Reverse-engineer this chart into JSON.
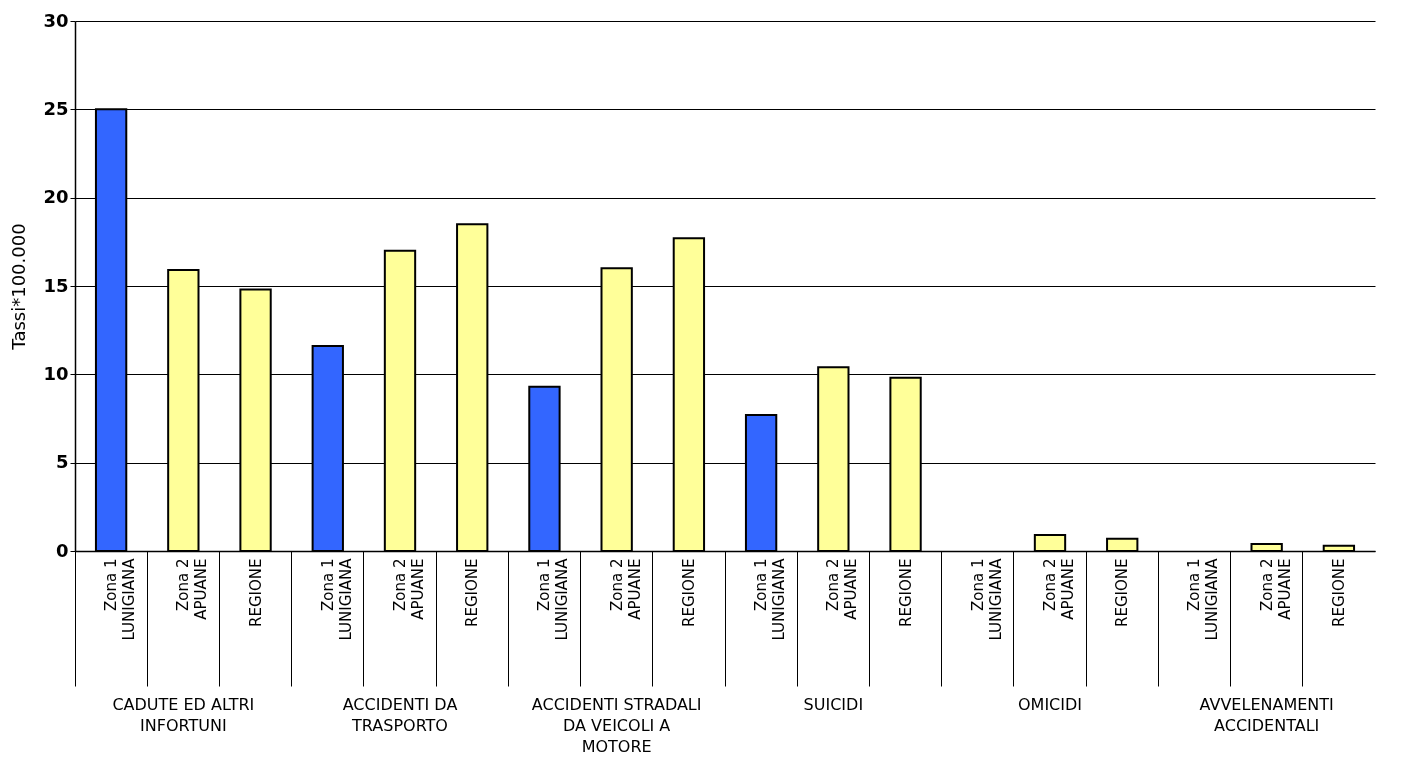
{
  "chart_data": {
    "type": "bar",
    "ylabel": "Tassi*100.000",
    "categories": [
      "Zona 1\nLUNIGIANA",
      "Zona 2\nAPUANE",
      "REGIONE",
      "Zona 1\nLUNIGIANA",
      "Zona 2\nAPUANE",
      "REGIONE",
      "Zona 1\nLUNIGIANA",
      "Zona 2\nAPUANE",
      "REGIONE",
      "Zona 1\nLUNIGIANA",
      "Zona 2\nAPUANE",
      "REGIONE",
      "Zona 1\nLUNIGIANA",
      "Zona 2\nAPUANE",
      "REGIONE",
      "Zona 1\nLUNIGIANA",
      "Zona 2\nAPUANE",
      "REGIONE"
    ],
    "values": [
      25.0,
      15.9,
      14.8,
      11.6,
      17.0,
      18.5,
      9.3,
      16.0,
      17.7,
      7.7,
      10.4,
      9.8,
      null,
      0.9,
      0.7,
      null,
      0.4,
      0.3
    ],
    "colors": [
      "#3366ff",
      "#ffff99",
      "#ffff99",
      "#3366ff",
      "#ffff99",
      "#ffff99",
      "#3366ff",
      "#ffff99",
      "#ffff99",
      "#3366ff",
      "#ffff99",
      "#ffff99",
      "#3366ff",
      "#ffff99",
      "#ffff99",
      "#3366ff",
      "#ffff99",
      "#ffff99"
    ],
    "annotations": [
      "CADUTE ED ALTRI\nINFORTUNI",
      "ACCIDENTI DA\nTRASPORTO",
      "ACCIDENTI STRADALI\nDA VEICOLI A\nMOTORE",
      "SUICIDI",
      "OMICIDI",
      "AVVELENAMENTI\nACCIDENTALI"
    ],
    "ylim": [
      0,
      30
    ],
    "yticks": [
      0,
      5,
      10,
      15,
      20,
      25,
      30
    ],
    "grid": "y",
    "legend": false
  }
}
